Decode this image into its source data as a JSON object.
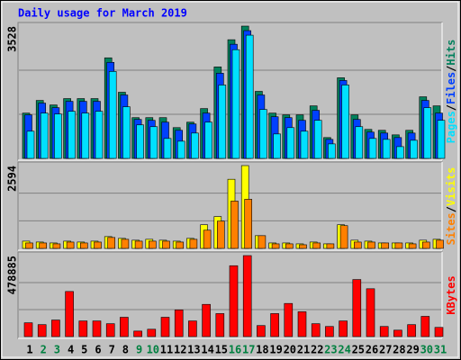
{
  "title": "Daily usage for March 2019",
  "separator": "/",
  "categories": [
    "1",
    "2",
    "3",
    "4",
    "5",
    "6",
    "7",
    "8",
    "9",
    "10",
    "11",
    "12",
    "13",
    "14",
    "15",
    "16",
    "17",
    "18",
    "19",
    "20",
    "21",
    "22",
    "23",
    "24",
    "25",
    "26",
    "27",
    "28",
    "29",
    "30",
    "31"
  ],
  "category_colors": [
    "#000000",
    "#008040",
    "#008040",
    "#000000",
    "#000000",
    "#000000",
    "#000000",
    "#000000",
    "#008040",
    "#008040",
    "#000000",
    "#000000",
    "#000000",
    "#000000",
    "#000000",
    "#008040",
    "#008040",
    "#000000",
    "#000000",
    "#000000",
    "#000000",
    "#000000",
    "#008040",
    "#008040",
    "#000000",
    "#000000",
    "#000000",
    "#000000",
    "#000000",
    "#008040",
    "#008040"
  ],
  "chart_data": [
    {
      "type": "bar",
      "ylim": [
        0,
        3528
      ],
      "yticks": [
        3528
      ],
      "series": [
        {
          "name": "Hits",
          "color": "#00805c",
          "values": [
            1208,
            1546,
            1425,
            1595,
            1595,
            1595,
            2682,
            1764,
            1087,
            1087,
            1087,
            821,
            966,
            1329,
            2440,
            3165,
            3528,
            1788,
            1208,
            1160,
            1160,
            1401,
            556,
            2150,
            1160,
            773,
            749,
            628,
            749,
            1643,
            1401
          ]
        },
        {
          "name": "Files",
          "color": "#0040ff",
          "values": [
            1160,
            1474,
            1353,
            1522,
            1522,
            1522,
            2561,
            1691,
            1039,
            1015,
            966,
            749,
            918,
            1208,
            2271,
            3044,
            3407,
            1691,
            1111,
            1087,
            1015,
            1281,
            507,
            2078,
            1039,
            701,
            676,
            556,
            676,
            1546,
            1208
          ]
        },
        {
          "name": "Pages",
          "color": "#00e0ff",
          "values": [
            725,
            1208,
            1184,
            1256,
            1208,
            1256,
            2319,
            1377,
            894,
            846,
            532,
            459,
            676,
            966,
            1957,
            2899,
            3286,
            1305,
            652,
            821,
            725,
            1015,
            387,
            1957,
            846,
            532,
            507,
            314,
            483,
            1353,
            1015
          ]
        }
      ]
    },
    {
      "type": "bar",
      "ylim": [
        0,
        2594
      ],
      "yticks": [
        2594
      ],
      "series": [
        {
          "name": "Visits",
          "color": "#ffff00",
          "values": [
            228,
            200,
            171,
            228,
            200,
            228,
            370,
            314,
            257,
            285,
            257,
            228,
            314,
            741,
            998,
            2166,
            2594,
            399,
            171,
            171,
            143,
            200,
            143,
            741,
            257,
            228,
            171,
            171,
            171,
            257,
            285
          ]
        },
        {
          "name": "Sites",
          "color": "#ff8000",
          "values": [
            171,
            171,
            143,
            199,
            171,
            199,
            342,
            285,
            228,
            228,
            228,
            199,
            285,
            570,
            855,
            1482,
            1539,
            399,
            143,
            143,
            114,
            171,
            143,
            713,
            199,
            199,
            171,
            171,
            143,
            199,
            257
          ]
        }
      ]
    },
    {
      "type": "bar",
      "ylim": [
        0,
        478885
      ],
      "yticks": [
        478885
      ],
      "series": [
        {
          "name": "KBytes",
          "color": "#ff0000",
          "values": [
            81630,
            70746,
            97956,
            266658,
            92514,
            92514,
            76188,
            114282,
            32652,
            43536,
            114282,
            157818,
            92514,
            190470,
            136050,
            419034,
            478885,
            65304,
            136050,
            195912,
            146934,
            76188,
            59862,
            92514,
            337404,
            282984,
            59862,
            38094,
            70746,
            119724,
            54420
          ]
        }
      ]
    }
  ]
}
